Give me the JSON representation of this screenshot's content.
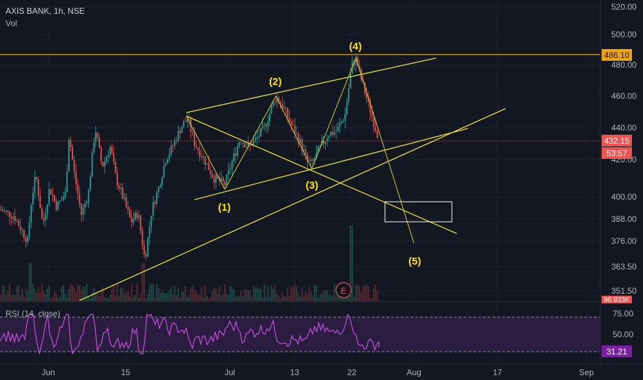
{
  "header": {
    "symbol_line": "AXIS BANK, 1h, NSE",
    "volume_label": "Vol"
  },
  "rsi": {
    "label": "RSI (14, close)",
    "upper_level": 75.0,
    "lower_level": 25.0,
    "current_value": "31.21",
    "ticks": [
      "75.00",
      "50.00"
    ]
  },
  "price_axis": {
    "ticks": [
      "520.00",
      "500.00",
      "480.00",
      "460.00",
      "440.00",
      "420.00",
      "400.00",
      "388.00",
      "376.00",
      "363.50",
      "351.50"
    ],
    "current_price": "432.15",
    "countdown": "53:57",
    "resistance_label": "486.10",
    "volume_badge": "96.933K"
  },
  "time_axis": {
    "ticks": [
      "Jun",
      "15",
      "Jul",
      "13",
      "22",
      "Aug",
      "17",
      "Sep"
    ]
  },
  "annotations": {
    "waves": [
      "(1)",
      "(2)",
      "(3)",
      "(4)",
      "(5)"
    ],
    "earnings_marker": "E"
  },
  "colors": {
    "background": "#131722",
    "bull": "#26a69a",
    "bear": "#ef5350",
    "wave_lines": "#e6e03a",
    "wave_labels": "#ffe600",
    "resistance": "#f0a30a",
    "rsi_line": "#c74fe0",
    "rsi_band": "#2a1d40",
    "axis_text": "#b2b5be"
  },
  "chart_data": {
    "type": "candlestick",
    "title": "AXIS BANK, 1h, NSE",
    "ylim": [
      351.5,
      520
    ],
    "horizontal_lines": [
      {
        "label": "486.10",
        "value": 486.1
      },
      {
        "label": "432.15",
        "value": 432.15
      }
    ],
    "wave_points": [
      {
        "label": "(1)",
        "value": 405
      },
      {
        "label": "(2)",
        "value": 461
      },
      {
        "label": "(3)",
        "value": 418
      },
      {
        "label": "(4)",
        "value": 486
      },
      {
        "label": "(5)",
        "value": 375
      }
    ],
    "price_path": [
      {
        "t": "Jun",
        "value": 392
      },
      {
        "t": "15",
        "value": 405
      },
      {
        "t": "Jul",
        "value": 408
      },
      {
        "t": "13",
        "value": 430
      },
      {
        "t": "22",
        "value": 482
      },
      {
        "t": "end",
        "value": 432.15
      }
    ],
    "rsi_current": 31.21
  }
}
